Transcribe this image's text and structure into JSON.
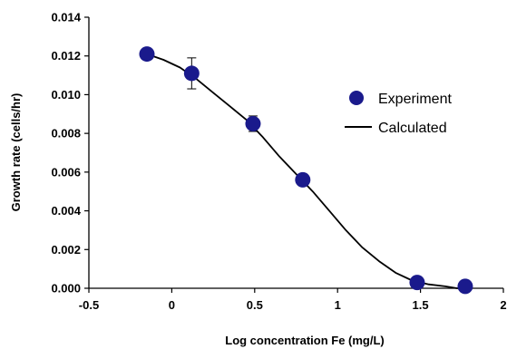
{
  "chart_data": {
    "type": "scatter",
    "xlabel": "Log concentration Fe (mg/L)",
    "ylabel": "Growth rate (cells/hr)",
    "xlim": [
      -0.5,
      2
    ],
    "ylim": [
      0,
      0.014
    ],
    "x_ticks": [
      -0.5,
      0,
      0.5,
      1,
      1.5,
      2
    ],
    "x_tick_labels": [
      "-0.5",
      "0",
      "0.5",
      "1",
      "1.5",
      "2"
    ],
    "y_ticks": [
      0,
      0.002,
      0.004,
      0.006,
      0.008,
      0.01,
      0.012,
      0.014
    ],
    "y_tick_labels": [
      "0.000",
      "0.002",
      "0.004",
      "0.006",
      "0.008",
      "0.010",
      "0.012",
      "0.014"
    ],
    "grid": false,
    "legend_position": "right",
    "series": [
      {
        "name": "Experiment",
        "kind": "points",
        "color": "#1a1a8c",
        "x": [
          -0.15,
          0.12,
          0.49,
          0.79,
          1.48,
          1.77
        ],
        "y": [
          0.0121,
          0.0111,
          0.0085,
          0.0056,
          0.0003,
          0.0001
        ],
        "error": [
          0.0001,
          0.0008,
          0.0004,
          0.0003,
          0.0001,
          0.0001
        ]
      },
      {
        "name": "Calculated",
        "kind": "line",
        "color": "#000000",
        "x": [
          -0.15,
          -0.05,
          0.05,
          0.15,
          0.25,
          0.35,
          0.45,
          0.55,
          0.65,
          0.75,
          0.85,
          0.95,
          1.05,
          1.15,
          1.25,
          1.35,
          1.45,
          1.55,
          1.65,
          1.72,
          1.77
        ],
        "y": [
          0.0121,
          0.0118,
          0.0114,
          0.0108,
          0.0101,
          0.0094,
          0.0087,
          0.0078,
          0.0068,
          0.0059,
          0.005,
          0.004,
          0.003,
          0.0021,
          0.0014,
          0.0008,
          0.0004,
          0.0002,
          0.0001,
          0.0,
          0.0
        ]
      }
    ]
  }
}
